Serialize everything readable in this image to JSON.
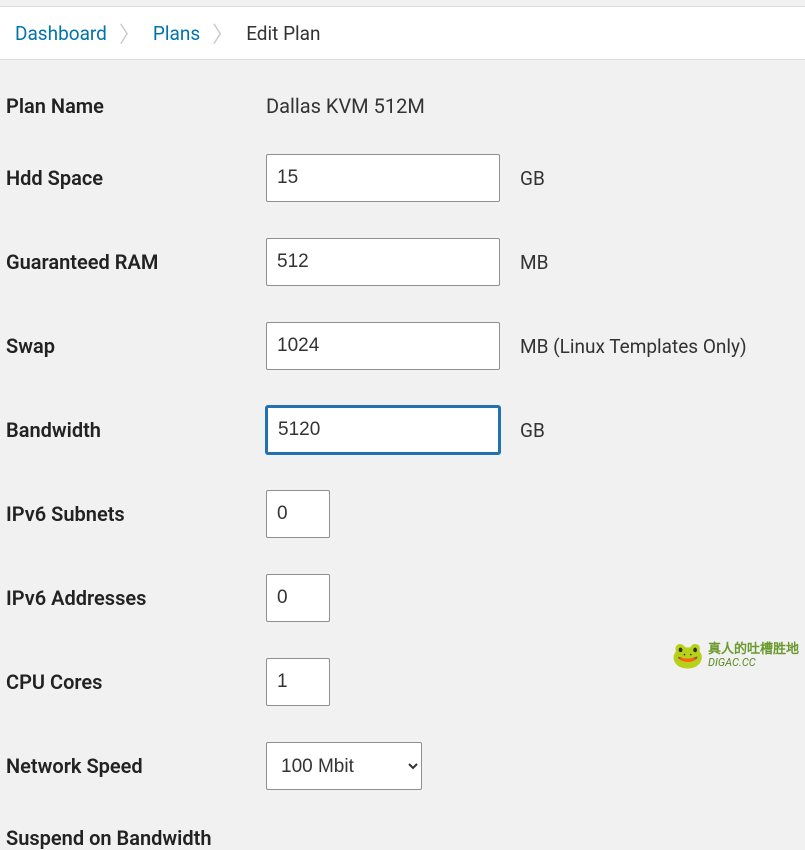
{
  "breadcrumb": {
    "items": [
      {
        "label": "Dashboard",
        "link": true
      },
      {
        "label": "Plans",
        "link": true
      },
      {
        "label": "Edit Plan",
        "link": false
      }
    ]
  },
  "form": {
    "plan_name": {
      "label": "Plan Name",
      "value": "Dallas KVM 512M"
    },
    "hdd_space": {
      "label": "Hdd Space",
      "value": "15",
      "unit": "GB",
      "input_width": "wide"
    },
    "guaranteed_ram": {
      "label": "Guaranteed RAM",
      "value": "512",
      "unit": "MB",
      "input_width": "wide"
    },
    "swap": {
      "label": "Swap",
      "value": "1024",
      "unit": "MB (Linux Templates Only)",
      "input_width": "wide"
    },
    "bandwidth": {
      "label": "Bandwidth",
      "value": "5120",
      "unit": "GB",
      "input_width": "wide",
      "focused": true
    },
    "ipv6_subnets": {
      "label": "IPv6 Subnets",
      "value": "0",
      "unit": "",
      "input_width": "narrow"
    },
    "ipv6_addresses": {
      "label": "IPv6 Addresses",
      "value": "0",
      "unit": "",
      "input_width": "narrow"
    },
    "cpu_cores": {
      "label": "CPU Cores",
      "value": "1",
      "unit": "",
      "input_width": "narrow"
    },
    "network_speed": {
      "label": "Network Speed",
      "value": "100 Mbit",
      "options": [
        "100 Mbit"
      ]
    },
    "suspend_bandwidth": {
      "label": "Suspend on Bandwidth"
    }
  },
  "watermark": {
    "cn": "真人的吐槽胜地",
    "url": "DIGAC.CC"
  },
  "colors": {
    "link": "#0073aa",
    "focus": "#2271b1",
    "border": "#8c8f94",
    "bg": "#f1f1f1",
    "text": "#333"
  }
}
